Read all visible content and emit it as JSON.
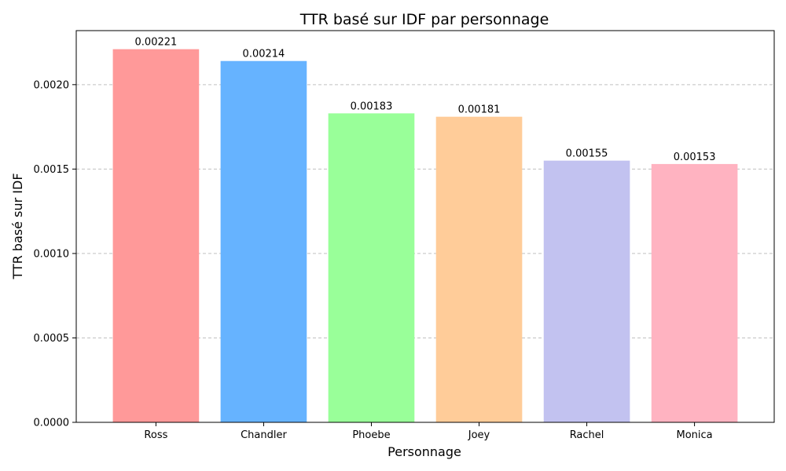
{
  "chart_data": {
    "type": "bar",
    "title": "TTR basé sur IDF par personnage",
    "xlabel": "Personnage",
    "ylabel": "TTR basé sur IDF",
    "categories": [
      "Ross",
      "Chandler",
      "Phoebe",
      "Joey",
      "Rachel",
      "Monica"
    ],
    "values": [
      0.00221,
      0.00214,
      0.00183,
      0.00181,
      0.00155,
      0.00153
    ],
    "value_labels": [
      "0.00221",
      "0.00214",
      "0.00183",
      "0.00181",
      "0.00155",
      "0.00153"
    ],
    "colors": [
      "#ff9999",
      "#66b3ff",
      "#99ff99",
      "#ffcc99",
      "#c2c2f0",
      "#ffb3c1"
    ],
    "ylim": [
      0,
      0.00232
    ],
    "yticks": [
      0,
      0.0005,
      0.001,
      0.0015,
      0.002
    ],
    "ytick_labels": [
      "0.0000",
      "0.0005",
      "0.0010",
      "0.0015",
      "0.0020"
    ],
    "grid": "y-dashed",
    "grid_color": "#c0c0c0",
    "legend": "none"
  }
}
